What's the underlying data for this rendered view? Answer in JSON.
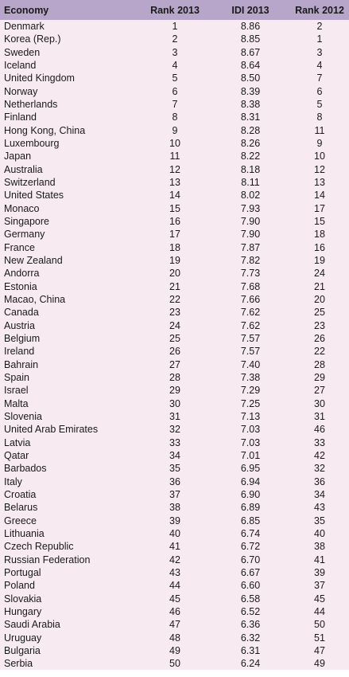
{
  "table": {
    "headers": {
      "economy": "Economy",
      "rank2013": "Rank 2013",
      "idi2013": "IDI 2013",
      "rank2012": "Rank 2012"
    },
    "rows": [
      [
        "Denmark",
        "1",
        "8.86",
        "2"
      ],
      [
        "Korea (Rep.)",
        "2",
        "8.85",
        "1"
      ],
      [
        "Sweden",
        "3",
        "8.67",
        "3"
      ],
      [
        "Iceland",
        "4",
        "8.64",
        "4"
      ],
      [
        "United Kingdom",
        "5",
        "8.50",
        "7"
      ],
      [
        "Norway",
        "6",
        "8.39",
        "6"
      ],
      [
        "Netherlands",
        "7",
        "8.38",
        "5"
      ],
      [
        "Finland",
        "8",
        "8.31",
        "8"
      ],
      [
        "Hong Kong, China",
        "9",
        "8.28",
        "11"
      ],
      [
        "Luxembourg",
        "10",
        "8.26",
        "9"
      ],
      [
        "Japan",
        "11",
        "8.22",
        "10"
      ],
      [
        "Australia",
        "12",
        "8.18",
        "12"
      ],
      [
        "Switzerland",
        "13",
        "8.11",
        "13"
      ],
      [
        "United States",
        "14",
        "8.02",
        "14"
      ],
      [
        "Monaco",
        "15",
        "7.93",
        "17"
      ],
      [
        "Singapore",
        "16",
        "7.90",
        "15"
      ],
      [
        "Germany",
        "17",
        "7.90",
        "18"
      ],
      [
        "France",
        "18",
        "7.87",
        "16"
      ],
      [
        "New Zealand",
        "19",
        "7.82",
        "19"
      ],
      [
        "Andorra",
        "20",
        "7.73",
        "24"
      ],
      [
        "Estonia",
        "21",
        "7.68",
        "21"
      ],
      [
        "Macao, China",
        "22",
        "7.66",
        "20"
      ],
      [
        "Canada",
        "23",
        "7.62",
        "25"
      ],
      [
        "Austria",
        "24",
        "7.62",
        "23"
      ],
      [
        "Belgium",
        "25",
        "7.57",
        "26"
      ],
      [
        "Ireland",
        "26",
        "7.57",
        "22"
      ],
      [
        "Bahrain",
        "27",
        "7.40",
        "28"
      ],
      [
        "Spain",
        "28",
        "7.38",
        "29"
      ],
      [
        "Israel",
        "29",
        "7.29",
        "27"
      ],
      [
        "Malta",
        "30",
        "7.25",
        "30"
      ],
      [
        "Slovenia",
        "31",
        "7.13",
        "31"
      ],
      [
        "United Arab Emirates",
        "32",
        "7.03",
        "46"
      ],
      [
        "Latvia",
        "33",
        "7.03",
        "33"
      ],
      [
        "Qatar",
        "34",
        "7.01",
        "42"
      ],
      [
        "Barbados",
        "35",
        "6.95",
        "32"
      ],
      [
        "Italy",
        "36",
        "6.94",
        "36"
      ],
      [
        "Croatia",
        "37",
        "6.90",
        "34"
      ],
      [
        "Belarus",
        "38",
        "6.89",
        "43"
      ],
      [
        "Greece",
        "39",
        "6.85",
        "35"
      ],
      [
        "Lithuania",
        "40",
        "6.74",
        "40"
      ],
      [
        "Czech Republic",
        "41",
        "6.72",
        "38"
      ],
      [
        "Russian Federation",
        "42",
        "6.70",
        "41"
      ],
      [
        "Portugal",
        "43",
        "6.67",
        "39"
      ],
      [
        "Poland",
        "44",
        "6.60",
        "37"
      ],
      [
        "Slovakia",
        "45",
        "6.58",
        "45"
      ],
      [
        "Hungary",
        "46",
        "6.52",
        "44"
      ],
      [
        "Saudi Arabia",
        "47",
        "6.36",
        "50"
      ],
      [
        "Uruguay",
        "48",
        "6.32",
        "51"
      ],
      [
        "Bulgaria",
        "49",
        "6.31",
        "47"
      ],
      [
        "Serbia",
        "50",
        "6.24",
        "49"
      ]
    ]
  }
}
